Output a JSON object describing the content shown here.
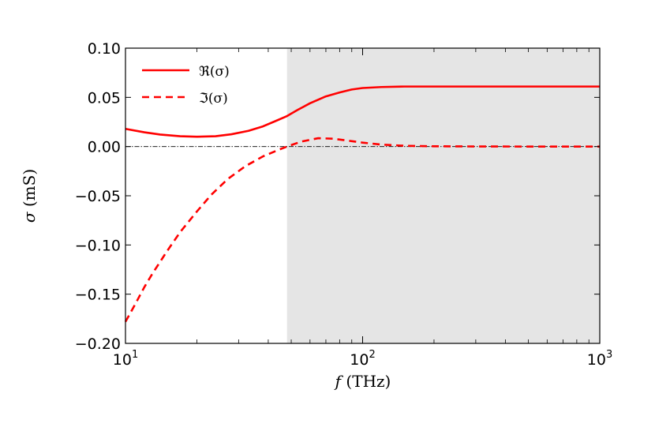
{
  "chart_data": {
    "type": "line",
    "xlabel_var": "f",
    "xlabel_unit": " (THz)",
    "ylabel_var": "σ",
    "ylabel_unit": " (mS)",
    "xscale": "log",
    "xlim": [
      10,
      1000
    ],
    "ylim": [
      -0.2,
      0.1
    ],
    "x_ticks": [
      {
        "value": 10,
        "base": "10",
        "exp": "1"
      },
      {
        "value": 100,
        "base": "10",
        "exp": "2"
      },
      {
        "value": 1000,
        "base": "10",
        "exp": "3"
      }
    ],
    "y_ticks": [
      {
        "value": 0.1,
        "label": "0.10"
      },
      {
        "value": 0.05,
        "label": "0.05"
      },
      {
        "value": 0.0,
        "label": "0.00"
      },
      {
        "value": -0.05,
        "label": "−0.05"
      },
      {
        "value": -0.1,
        "label": "−0.10"
      },
      {
        "value": -0.15,
        "label": "−0.15"
      },
      {
        "value": -0.2,
        "label": "−0.20"
      }
    ],
    "shaded_region": {
      "x_start": 48,
      "x_end": 1000,
      "color": "#e5e5e5"
    },
    "reference_line": {
      "y": 0,
      "style": "dash-dot",
      "color": "#000000"
    },
    "legend_position": "top-left",
    "grid": false,
    "series": [
      {
        "name": "ℜ(σ)",
        "color": "#ff0000",
        "style": "solid",
        "points": [
          [
            10,
            0.018
          ],
          [
            12,
            0.0145
          ],
          [
            14,
            0.0122
          ],
          [
            17,
            0.0105
          ],
          [
            20,
            0.01
          ],
          [
            24,
            0.0105
          ],
          [
            28,
            0.0125
          ],
          [
            33,
            0.016
          ],
          [
            38,
            0.0205
          ],
          [
            43,
            0.026
          ],
          [
            48,
            0.031
          ],
          [
            53,
            0.037
          ],
          [
            60,
            0.044
          ],
          [
            70,
            0.051
          ],
          [
            80,
            0.055
          ],
          [
            90,
            0.058
          ],
          [
            100,
            0.0595
          ],
          [
            120,
            0.0605
          ],
          [
            150,
            0.061
          ],
          [
            200,
            0.061
          ],
          [
            300,
            0.061
          ],
          [
            500,
            0.061
          ],
          [
            1000,
            0.061
          ]
        ]
      },
      {
        "name": "ℑ(σ)",
        "color": "#ff0000",
        "style": "dashed",
        "points": [
          [
            10,
            -0.178
          ],
          [
            11,
            -0.16
          ],
          [
            12,
            -0.143
          ],
          [
            13,
            -0.129
          ],
          [
            15,
            -0.106
          ],
          [
            17,
            -0.087
          ],
          [
            20,
            -0.066
          ],
          [
            23,
            -0.049
          ],
          [
            27,
            -0.033
          ],
          [
            32,
            -0.02
          ],
          [
            38,
            -0.01
          ],
          [
            44,
            -0.0035
          ],
          [
            48,
            0.0
          ],
          [
            55,
            0.005
          ],
          [
            65,
            0.0085
          ],
          [
            75,
            0.008
          ],
          [
            90,
            0.0055
          ],
          [
            100,
            0.004
          ],
          [
            120,
            0.002
          ],
          [
            150,
            0.0008
          ],
          [
            200,
            0.0003
          ],
          [
            300,
            0.0001
          ],
          [
            500,
            0.0
          ],
          [
            1000,
            0.0
          ]
        ]
      }
    ]
  }
}
